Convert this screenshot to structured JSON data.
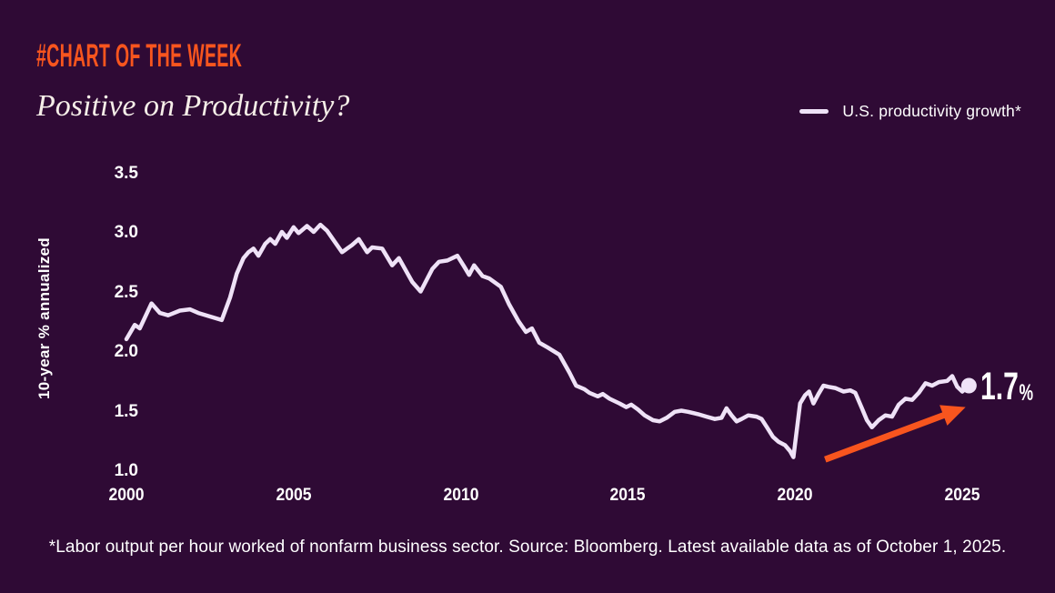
{
  "page": {
    "background_color": "#2F0A35",
    "accent_color": "#F8551E",
    "line_color": "#EFE2F7",
    "text_color": "#FFFFFF",
    "subtitle_color": "#F5EEE8"
  },
  "header": {
    "kicker": "#CHART OF THE WEEK",
    "title": "Positive on Productivity?"
  },
  "legend": {
    "label": "U.S. productivity growth*"
  },
  "chart_data": {
    "type": "line",
    "title": "Positive on Productivity?",
    "xlabel": "",
    "ylabel": "10-year % annualized",
    "xlim": [
      2000,
      2025.5
    ],
    "ylim": [
      1.0,
      3.5
    ],
    "yticks": [
      "3.5",
      "3.0",
      "2.5",
      "2.0",
      "1.5",
      "1.0"
    ],
    "ytick_values": [
      3.5,
      3.0,
      2.5,
      2.0,
      1.5,
      1.0
    ],
    "xticks": [
      "2000",
      "2005",
      "2010",
      "2015",
      "2020",
      "2025"
    ],
    "xtick_values": [
      2000,
      2005,
      2010,
      2015,
      2020,
      2025
    ],
    "grid": false,
    "legend_position": "top-right",
    "series": [
      {
        "name": "U.S. productivity growth*",
        "points": [
          [
            2000.0,
            2.1
          ],
          [
            2000.25,
            2.22
          ],
          [
            2000.4,
            2.19
          ],
          [
            2000.75,
            2.4
          ],
          [
            2001.0,
            2.32
          ],
          [
            2001.25,
            2.3
          ],
          [
            2001.6,
            2.34
          ],
          [
            2001.9,
            2.35
          ],
          [
            2002.15,
            2.32
          ],
          [
            2002.5,
            2.29
          ],
          [
            2002.85,
            2.26
          ],
          [
            2003.1,
            2.45
          ],
          [
            2003.3,
            2.65
          ],
          [
            2003.5,
            2.78
          ],
          [
            2003.65,
            2.83
          ],
          [
            2003.8,
            2.86
          ],
          [
            2003.95,
            2.8
          ],
          [
            2004.15,
            2.9
          ],
          [
            2004.3,
            2.94
          ],
          [
            2004.45,
            2.9
          ],
          [
            2004.65,
            3.0
          ],
          [
            2004.8,
            2.95
          ],
          [
            2005.0,
            3.04
          ],
          [
            2005.15,
            2.99
          ],
          [
            2005.4,
            3.05
          ],
          [
            2005.6,
            3.0
          ],
          [
            2005.8,
            3.06
          ],
          [
            2006.0,
            3.01
          ],
          [
            2006.2,
            2.93
          ],
          [
            2006.45,
            2.83
          ],
          [
            2006.75,
            2.89
          ],
          [
            2006.95,
            2.94
          ],
          [
            2007.2,
            2.83
          ],
          [
            2007.35,
            2.87
          ],
          [
            2007.65,
            2.86
          ],
          [
            2007.95,
            2.72
          ],
          [
            2008.15,
            2.78
          ],
          [
            2008.55,
            2.58
          ],
          [
            2008.8,
            2.5
          ],
          [
            2009.15,
            2.69
          ],
          [
            2009.35,
            2.75
          ],
          [
            2009.6,
            2.76
          ],
          [
            2009.9,
            2.8
          ],
          [
            2010.1,
            2.71
          ],
          [
            2010.25,
            2.64
          ],
          [
            2010.4,
            2.72
          ],
          [
            2010.65,
            2.63
          ],
          [
            2010.85,
            2.61
          ],
          [
            2011.2,
            2.54
          ],
          [
            2011.45,
            2.39
          ],
          [
            2011.73,
            2.25
          ],
          [
            2011.95,
            2.16
          ],
          [
            2012.13,
            2.19
          ],
          [
            2012.35,
            2.07
          ],
          [
            2012.6,
            2.03
          ],
          [
            2012.95,
            1.97
          ],
          [
            2013.25,
            1.82
          ],
          [
            2013.45,
            1.71
          ],
          [
            2013.7,
            1.68
          ],
          [
            2013.85,
            1.65
          ],
          [
            2014.1,
            1.62
          ],
          [
            2014.25,
            1.64
          ],
          [
            2014.45,
            1.6
          ],
          [
            2014.75,
            1.56
          ],
          [
            2014.95,
            1.53
          ],
          [
            2015.1,
            1.55
          ],
          [
            2015.3,
            1.51
          ],
          [
            2015.5,
            1.46
          ],
          [
            2015.75,
            1.42
          ],
          [
            2015.95,
            1.41
          ],
          [
            2016.16,
            1.44
          ],
          [
            2016.4,
            1.49
          ],
          [
            2016.6,
            1.5
          ],
          [
            2016.8,
            1.49
          ],
          [
            2017.1,
            1.47
          ],
          [
            2017.35,
            1.45
          ],
          [
            2017.6,
            1.43
          ],
          [
            2017.8,
            1.44
          ],
          [
            2017.95,
            1.52
          ],
          [
            2018.1,
            1.46
          ],
          [
            2018.25,
            1.41
          ],
          [
            2018.4,
            1.43
          ],
          [
            2018.6,
            1.46
          ],
          [
            2018.85,
            1.45
          ],
          [
            2019.0,
            1.43
          ],
          [
            2019.16,
            1.36
          ],
          [
            2019.34,
            1.28
          ],
          [
            2019.5,
            1.24
          ],
          [
            2019.7,
            1.21
          ],
          [
            2019.85,
            1.16
          ],
          [
            2019.95,
            1.11
          ],
          [
            2020.15,
            1.56
          ],
          [
            2020.3,
            1.63
          ],
          [
            2020.42,
            1.66
          ],
          [
            2020.55,
            1.56
          ],
          [
            2020.7,
            1.64
          ],
          [
            2020.85,
            1.71
          ],
          [
            2021.0,
            1.7
          ],
          [
            2021.2,
            1.69
          ],
          [
            2021.45,
            1.66
          ],
          [
            2021.65,
            1.67
          ],
          [
            2021.8,
            1.65
          ],
          [
            2022.0,
            1.52
          ],
          [
            2022.15,
            1.42
          ],
          [
            2022.3,
            1.36
          ],
          [
            2022.5,
            1.42
          ],
          [
            2022.7,
            1.46
          ],
          [
            2022.9,
            1.45
          ],
          [
            2023.1,
            1.55
          ],
          [
            2023.3,
            1.6
          ],
          [
            2023.5,
            1.59
          ],
          [
            2023.7,
            1.65
          ],
          [
            2023.9,
            1.73
          ],
          [
            2024.1,
            1.71
          ],
          [
            2024.3,
            1.74
          ],
          [
            2024.55,
            1.75
          ],
          [
            2024.7,
            1.79
          ],
          [
            2024.85,
            1.7
          ],
          [
            2025.0,
            1.66
          ],
          [
            2025.2,
            1.71
          ]
        ]
      }
    ],
    "annotations": {
      "end_point": {
        "x": 2025.2,
        "value": 1.71,
        "label": "1.7",
        "suffix": "%"
      },
      "arrow": {
        "from": {
          "x": 2020.9,
          "value": 1.09
        },
        "to": {
          "x": 2025.1,
          "value": 1.53
        }
      }
    }
  },
  "footer": {
    "note": "*Labor output per hour worked of nonfarm business sector. Source: Bloomberg. Latest available data as of October 1, 2025."
  }
}
